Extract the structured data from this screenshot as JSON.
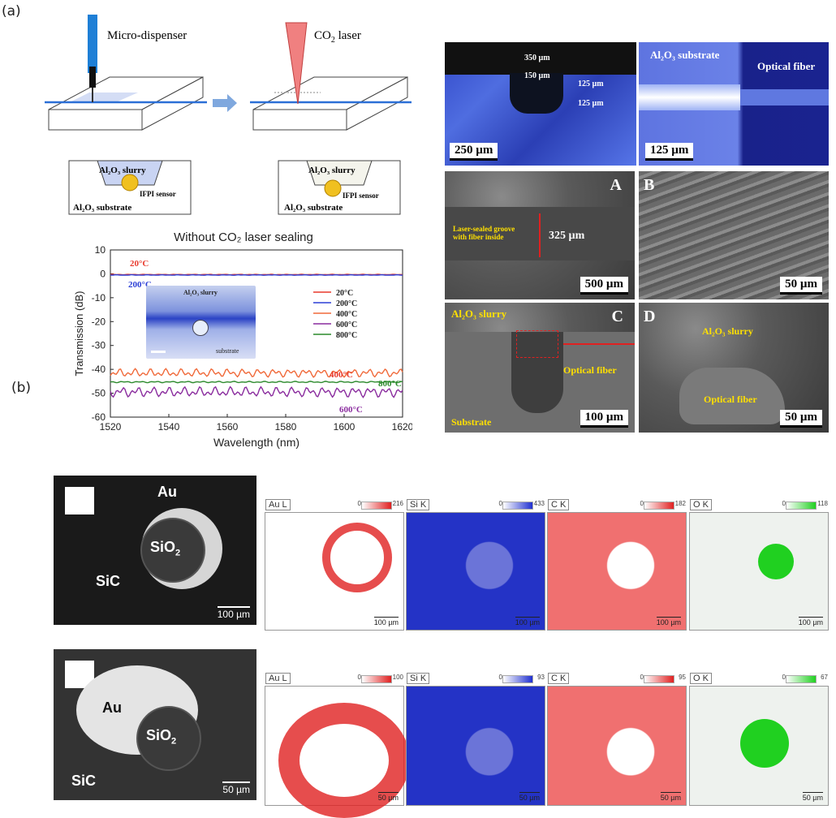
{
  "panel_a_label": "(a)",
  "panel_b_label": "(b)",
  "schematic": {
    "dispenser_label": "Micro-dispenser",
    "laser_label": "CO",
    "laser_sub": "2",
    "laser_suffix": " laser",
    "slurry1": "Al₂O₃ slurry",
    "sensor1": "IFPI sensor",
    "substrate1": "Al₂O₃ substrate",
    "slurry2": "Al₂O₃ slurry",
    "sensor2": "IFPI sensor",
    "substrate2": "Al₂O₃ substrate"
  },
  "micrographs": {
    "top_left": {
      "w350": "350 µm",
      "w150": "150 µm",
      "d125a": "125 µm",
      "d125b": "125 µm",
      "scale": "250 µm"
    },
    "top_right": {
      "substrate": "Al₂O₃ substrate",
      "fiber": "Optical fiber",
      "scale": "125 µm"
    },
    "A": {
      "letter": "A",
      "groove": "Laser-sealed groove\nwith fiber inside",
      "width": "325 µm",
      "scale": "500 µm"
    },
    "B": {
      "letter": "B",
      "scale": "50 µm"
    },
    "C": {
      "letter": "C",
      "slurry": "Al₂O₃ slurry",
      "fiber": "Optical fiber",
      "substrate": "Substrate",
      "scale": "100 µm"
    },
    "D": {
      "letter": "D",
      "slurry": "Al₂O₃ slurry",
      "fiber": "Optical fiber",
      "scale": "50 µm"
    }
  },
  "chart_data": {
    "type": "line",
    "title": "Without CO₂ laser sealing",
    "xlabel": "Wavelength (nm)",
    "ylabel": "Transmission (dB)",
    "xlim": [
      1520,
      1620
    ],
    "ylim": [
      -60,
      10
    ],
    "xticks": [
      1520,
      1540,
      1560,
      1580,
      1600,
      1620
    ],
    "yticks": [
      10,
      0,
      -10,
      -20,
      -30,
      -40,
      -50,
      -60
    ],
    "legend_position": "right",
    "series": [
      {
        "name": "20°C",
        "color": "#e8392c",
        "mean": -0.3,
        "amp": 0.1
      },
      {
        "name": "200°C",
        "color": "#2b3fd6",
        "mean": -0.5,
        "amp": 0.1
      },
      {
        "name": "400°C",
        "color": "#f06a3a",
        "mean": -41.5,
        "amp": 1.8
      },
      {
        "name": "600°C",
        "color": "#8a2c9e",
        "mean": -49.5,
        "amp": 2.2
      },
      {
        "name": "800°C",
        "color": "#2c8a2c",
        "mean": -45.3,
        "amp": 0.3
      }
    ],
    "annotations": [
      {
        "text": "20°C",
        "color": "#e8392c"
      },
      {
        "text": "200°C",
        "color": "#2b3fd6"
      },
      {
        "text": "400°C",
        "color": "#e8392c"
      },
      {
        "text": "800°C",
        "color": "#2c8a2c"
      },
      {
        "text": "600°C",
        "color": "#8a2c9e"
      }
    ],
    "inset": {
      "slurry": "Al₂O₃ slurry",
      "substrate": "substrate"
    }
  },
  "sem_rows": [
    {
      "au": "Au",
      "sio2": "SiO",
      "sic": "SiC",
      "scale": "100 µm",
      "maps": [
        {
          "tag": "Au L",
          "min": "0",
          "max": "216",
          "color": "#e02020",
          "scale": "100 µm"
        },
        {
          "tag": "Si K",
          "min": "0",
          "max": "433",
          "color": "#2030d0",
          "scale": "100 µm"
        },
        {
          "tag": "C K",
          "min": "0",
          "max": "182",
          "color": "#e02020",
          "scale": "100 µm"
        },
        {
          "tag": "O K",
          "min": "0",
          "max": "118",
          "color": "#20d020",
          "scale": "100 µm"
        }
      ]
    },
    {
      "au": "Au",
      "sio2": "SiO",
      "sic": "SiC",
      "scale": "50 µm",
      "maps": [
        {
          "tag": "Au L",
          "min": "0",
          "max": "100",
          "color": "#e02020",
          "scale": "50 µm"
        },
        {
          "tag": "Si K",
          "min": "0",
          "max": "93",
          "color": "#2030d0",
          "scale": "50 µm"
        },
        {
          "tag": "C K",
          "min": "0",
          "max": "95",
          "color": "#e02020",
          "scale": "50 µm"
        },
        {
          "tag": "O K",
          "min": "0",
          "max": "67",
          "color": "#20d020",
          "scale": "50 µm"
        }
      ]
    }
  ]
}
